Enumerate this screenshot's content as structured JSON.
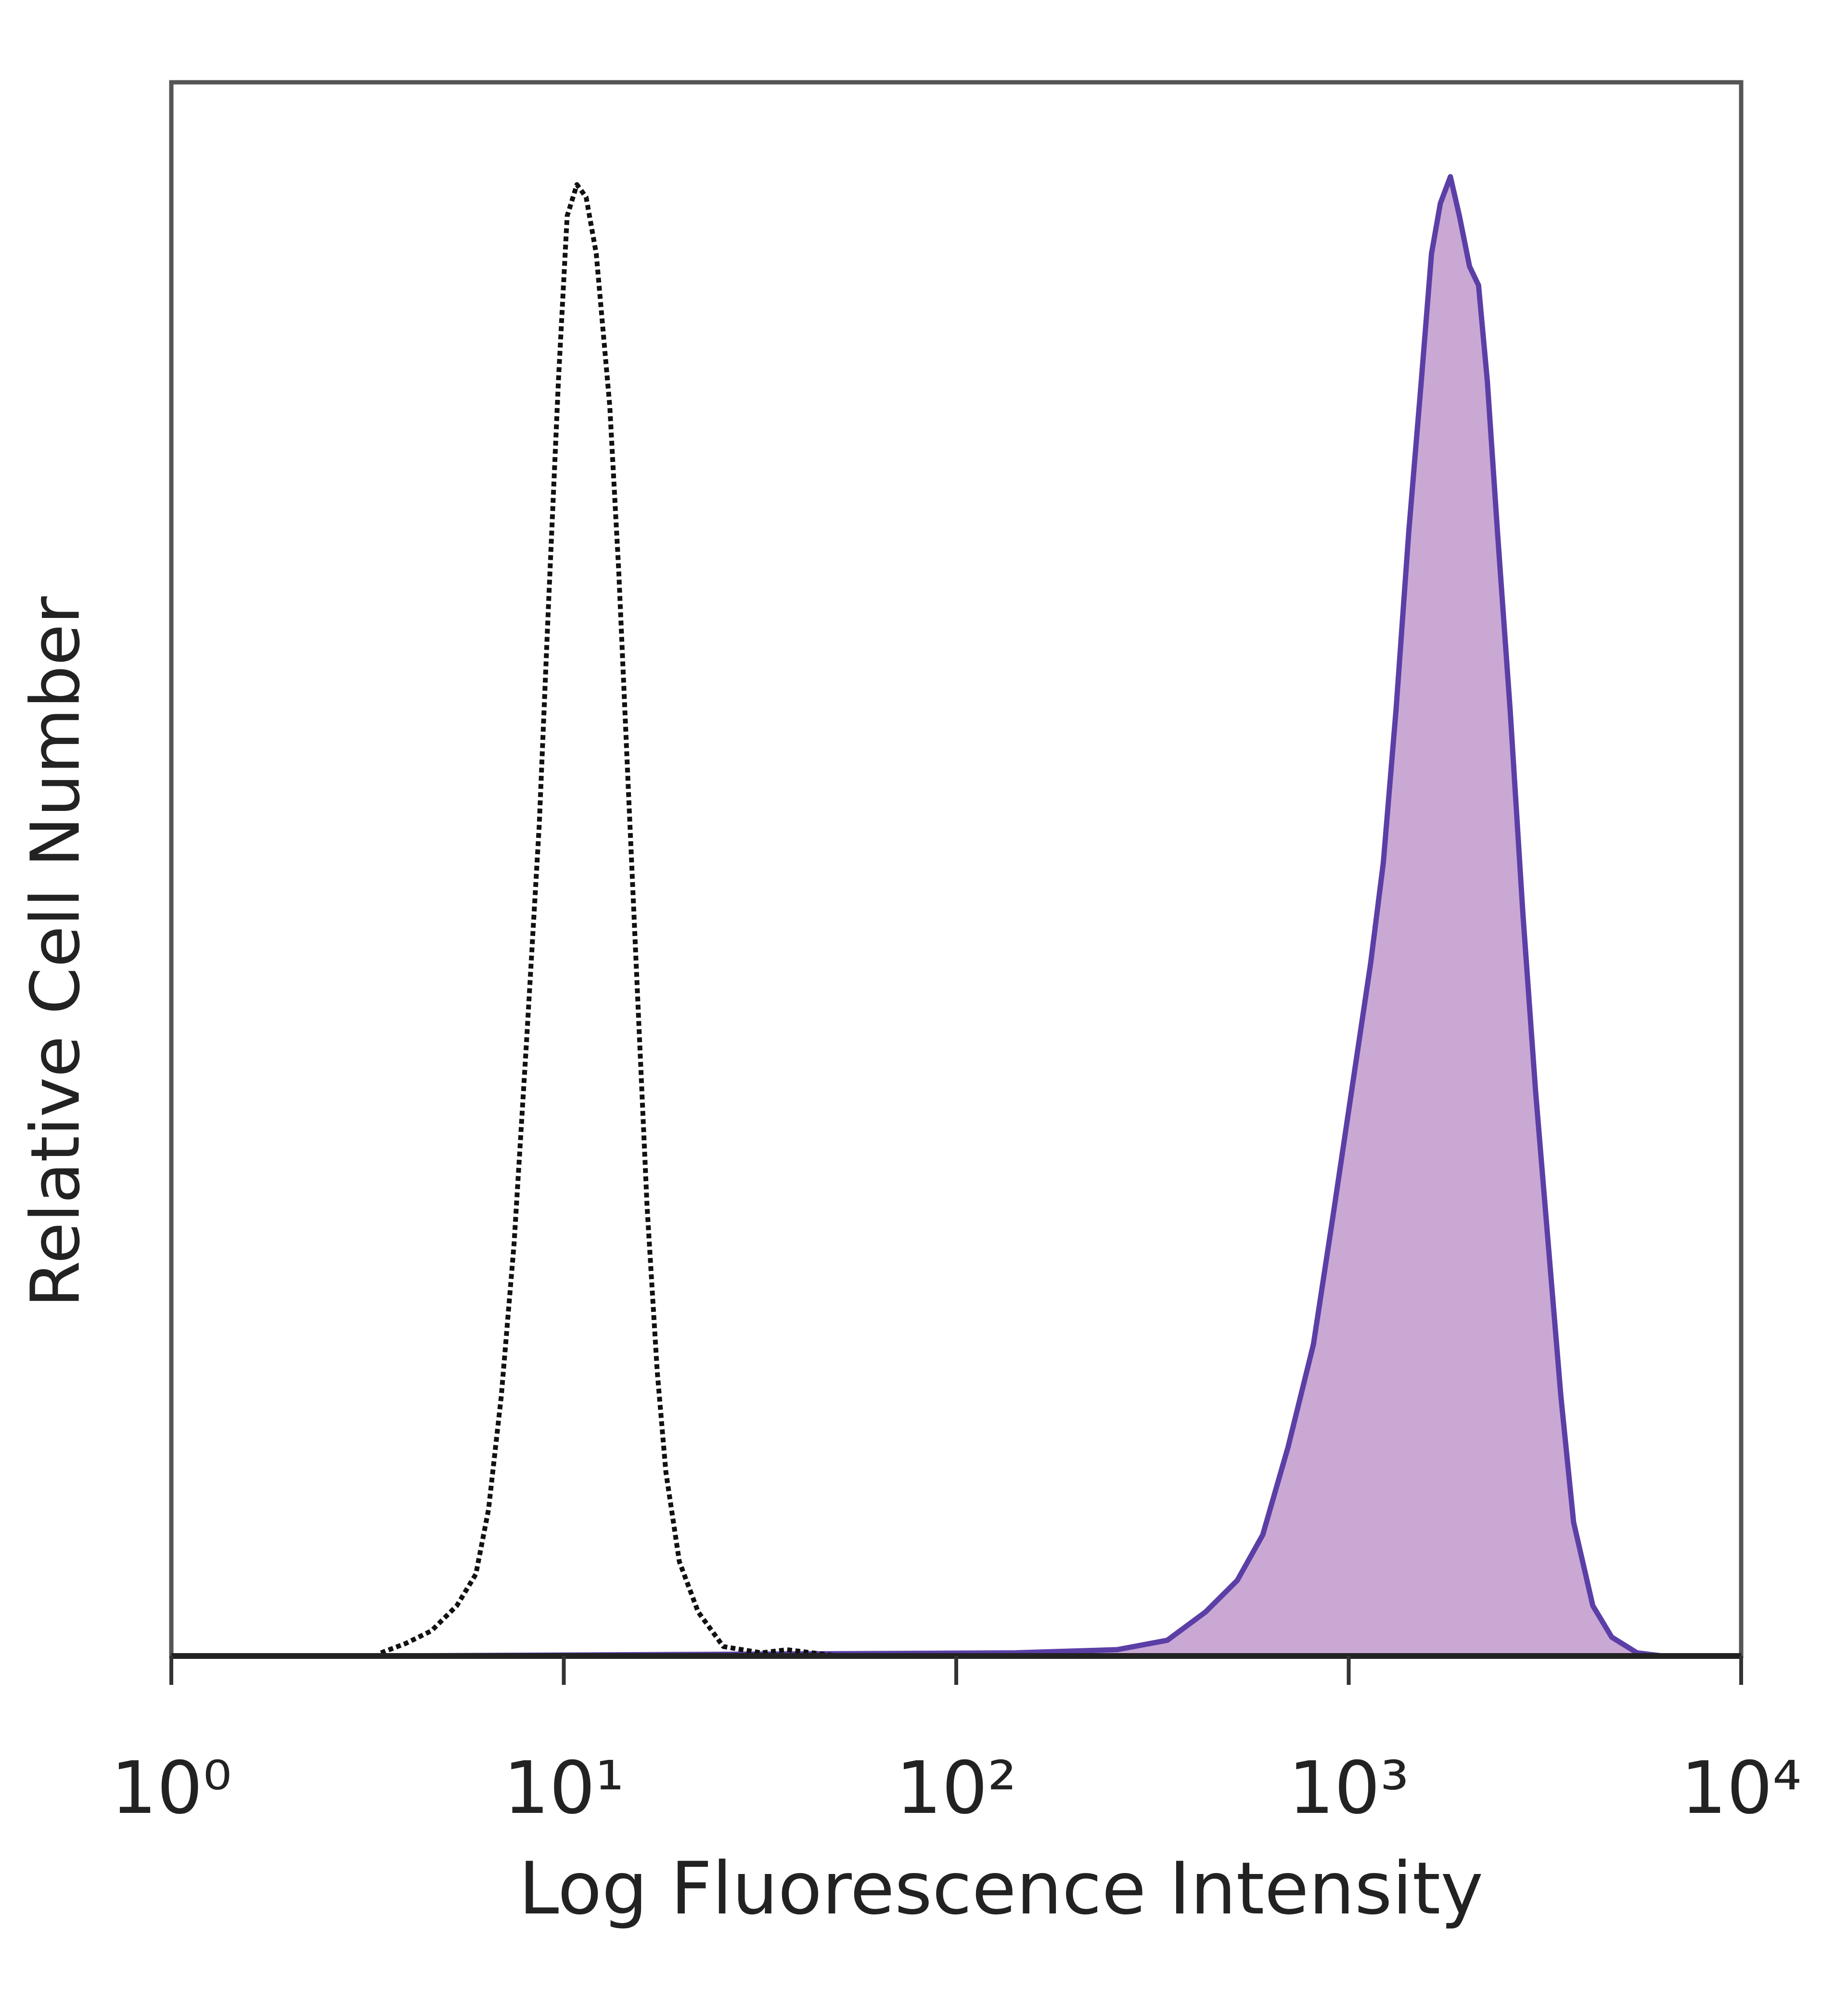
{
  "chart_data": {
    "type": "histogram-overlay",
    "x_label": "Log Fluorescence Intensity",
    "y_label": "Relative Cell Number",
    "xscale": "log",
    "xlim": [
      1,
      10000
    ],
    "ylim": [
      0,
      100
    ],
    "xticks": [
      {
        "value": 1,
        "label": "10⁰"
      },
      {
        "value": 10,
        "label": "10¹"
      },
      {
        "value": 100,
        "label": "10²"
      },
      {
        "value": 1000,
        "label": "10³"
      },
      {
        "value": 10000,
        "label": "10⁴"
      }
    ],
    "series": [
      {
        "color": "#5b3fa6",
        "fill": "#c9a8d4",
        "dashed": false,
        "x": [
          3.4,
          141,
          257,
          345,
          432,
          520,
          604,
          701,
          813,
          910,
          1017,
          1137,
          1225,
          1320,
          1422,
          1531,
          1625,
          1712,
          1816,
          1915,
          2032,
          2142,
          2256,
          2394,
          2579,
          2778,
          2993,
          3224,
          3473,
          3741,
          4188,
          4679,
          5429,
          6302
        ],
        "values": [
          0,
          0.2,
          0.4,
          1.0,
          2.8,
          4.8,
          7.7,
          13.3,
          19.8,
          27.8,
          35.9,
          44.0,
          50.4,
          60.1,
          71.4,
          81.0,
          89.1,
          92.3,
          94.0,
          91.5,
          88.3,
          87.1,
          81.0,
          71.4,
          60.1,
          47.2,
          35.9,
          26.2,
          16.5,
          8.5,
          3.2,
          1.2,
          0.2,
          0
        ]
      },
      {
        "color": "#111111",
        "dashed": true,
        "x": [
          3.42,
          3.96,
          4.6,
          5.34,
          5.97,
          6.43,
          6.93,
          7.47,
          8.04,
          8.66,
          9.13,
          9.69,
          10.2,
          10.8,
          11.4,
          12.1,
          13.1,
          13.8,
          14.6,
          15.5,
          16.3,
          17.3,
          18.2,
          19.7,
          22.0,
          25.5,
          31.9,
          37.0,
          49.9
        ],
        "values": [
          0.2,
          0.8,
          1.6,
          3.2,
          5.2,
          9.3,
          16.5,
          26.2,
          39.1,
          52.8,
          66.5,
          81.0,
          91.5,
          93.5,
          92.7,
          89.1,
          79.4,
          69.0,
          55.2,
          40.7,
          28.6,
          18.1,
          11.7,
          6.0,
          2.8,
          0.6,
          0.2,
          0.4,
          0
        ]
      }
    ]
  }
}
